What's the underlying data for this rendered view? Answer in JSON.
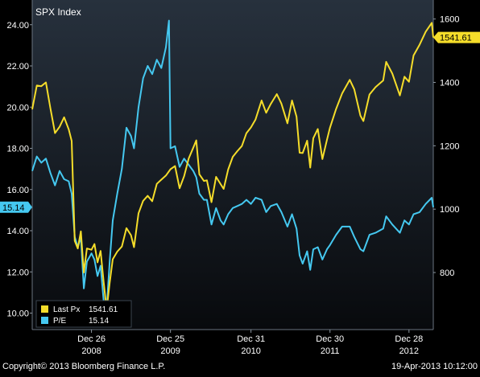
{
  "chart_data": {
    "type": "line",
    "title": "SPX Index",
    "x_tick_labels": [
      {
        "date": "2008-12-26",
        "line1": "Dec 26",
        "line2": "2008"
      },
      {
        "date": "2009-12-25",
        "line1": "Dec 25",
        "line2": "2009"
      },
      {
        "date": "2010-12-31",
        "line1": "Dec 31",
        "line2": "2010"
      },
      {
        "date": "2011-12-30",
        "line1": "Dec 30",
        "line2": "2011"
      },
      {
        "date": "2012-12-28",
        "line1": "Dec 28",
        "line2": "2012"
      }
    ],
    "xlim": [
      "2008-03-28",
      "2013-04-19"
    ],
    "left_axis": {
      "ylim": [
        9.2,
        25.2
      ],
      "ticks": [
        "10.00",
        "12.00",
        "14.00",
        "16.00",
        "18.00",
        "20.00",
        "22.00",
        "24.00"
      ]
    },
    "right_axis": {
      "ylim": [
        620,
        1660
      ],
      "ticks": [
        "800",
        "1000",
        "1200",
        "1400",
        "1600"
      ]
    },
    "legend_position": "bottom-left",
    "grid": false,
    "series": [
      {
        "name": "Last Px",
        "axis": "right",
        "color": "#f5dd2a",
        "last_value": "1541.61",
        "data": [
          [
            "2008-03-28",
            1315
          ],
          [
            "2008-04-18",
            1390
          ],
          [
            "2008-05-09",
            1388
          ],
          [
            "2008-05-30",
            1400
          ],
          [
            "2008-06-20",
            1318
          ],
          [
            "2008-07-11",
            1240
          ],
          [
            "2008-08-01",
            1260
          ],
          [
            "2008-08-22",
            1290
          ],
          [
            "2008-09-12",
            1252
          ],
          [
            "2008-09-26",
            1215
          ],
          [
            "2008-10-10",
            900
          ],
          [
            "2008-10-24",
            876
          ],
          [
            "2008-11-07",
            930
          ],
          [
            "2008-11-21",
            800
          ],
          [
            "2008-12-05",
            876
          ],
          [
            "2008-12-26",
            872
          ],
          [
            "2009-01-09",
            890
          ],
          [
            "2009-01-23",
            832
          ],
          [
            "2009-02-06",
            868
          ],
          [
            "2009-02-20",
            770
          ],
          [
            "2009-03-06",
            683
          ],
          [
            "2009-03-20",
            768
          ],
          [
            "2009-04-03",
            842
          ],
          [
            "2009-04-24",
            866
          ],
          [
            "2009-05-15",
            882
          ],
          [
            "2009-06-05",
            940
          ],
          [
            "2009-06-26",
            918
          ],
          [
            "2009-07-10",
            880
          ],
          [
            "2009-07-31",
            987
          ],
          [
            "2009-08-21",
            1026
          ],
          [
            "2009-09-11",
            1042
          ],
          [
            "2009-10-02",
            1025
          ],
          [
            "2009-10-23",
            1080
          ],
          [
            "2009-11-13",
            1093
          ],
          [
            "2009-12-04",
            1106
          ],
          [
            "2009-12-25",
            1126
          ],
          [
            "2010-01-15",
            1136
          ],
          [
            "2010-02-05",
            1066
          ],
          [
            "2010-02-26",
            1104
          ],
          [
            "2010-03-19",
            1160
          ],
          [
            "2010-04-09",
            1194
          ],
          [
            "2010-04-23",
            1217
          ],
          [
            "2010-05-07",
            1110
          ],
          [
            "2010-05-28",
            1089
          ],
          [
            "2010-06-11",
            1091
          ],
          [
            "2010-07-02",
            1022
          ],
          [
            "2010-07-23",
            1102
          ],
          [
            "2010-08-13",
            1079
          ],
          [
            "2010-08-27",
            1064
          ],
          [
            "2010-09-17",
            1125
          ],
          [
            "2010-10-08",
            1165
          ],
          [
            "2010-10-29",
            1183
          ],
          [
            "2010-11-19",
            1199
          ],
          [
            "2010-12-10",
            1240
          ],
          [
            "2010-12-31",
            1258
          ],
          [
            "2011-01-21",
            1283
          ],
          [
            "2011-02-18",
            1343
          ],
          [
            "2011-03-11",
            1304
          ],
          [
            "2011-04-01",
            1332
          ],
          [
            "2011-04-29",
            1363
          ],
          [
            "2011-05-20",
            1333
          ],
          [
            "2011-06-17",
            1271
          ],
          [
            "2011-07-08",
            1343
          ],
          [
            "2011-07-29",
            1292
          ],
          [
            "2011-08-12",
            1178
          ],
          [
            "2011-08-26",
            1177
          ],
          [
            "2011-09-16",
            1216
          ],
          [
            "2011-09-30",
            1131
          ],
          [
            "2011-10-14",
            1224
          ],
          [
            "2011-11-04",
            1253
          ],
          [
            "2011-11-25",
            1158
          ],
          [
            "2011-12-16",
            1219
          ],
          [
            "2011-12-30",
            1257
          ],
          [
            "2012-01-27",
            1316
          ],
          [
            "2012-02-24",
            1365
          ],
          [
            "2012-03-30",
            1408
          ],
          [
            "2012-04-20",
            1378
          ],
          [
            "2012-05-18",
            1295
          ],
          [
            "2012-06-01",
            1278
          ],
          [
            "2012-06-29",
            1362
          ],
          [
            "2012-07-27",
            1385
          ],
          [
            "2012-08-31",
            1406
          ],
          [
            "2012-09-14",
            1465
          ],
          [
            "2012-10-12",
            1428
          ],
          [
            "2012-11-16",
            1359
          ],
          [
            "2012-12-07",
            1418
          ],
          [
            "2012-12-28",
            1402
          ],
          [
            "2013-01-18",
            1485
          ],
          [
            "2013-02-15",
            1519
          ],
          [
            "2013-03-15",
            1560
          ],
          [
            "2013-04-12",
            1588
          ],
          [
            "2013-04-19",
            1541.61
          ]
        ]
      },
      {
        "name": "P/E",
        "axis": "left",
        "color": "#45c8f0",
        "last_value": "15.14",
        "data": [
          [
            "2008-03-28",
            16.9
          ],
          [
            "2008-04-18",
            17.6
          ],
          [
            "2008-05-09",
            17.3
          ],
          [
            "2008-05-30",
            17.5
          ],
          [
            "2008-06-20",
            16.8
          ],
          [
            "2008-07-11",
            16.2
          ],
          [
            "2008-08-01",
            16.9
          ],
          [
            "2008-08-22",
            16.5
          ],
          [
            "2008-09-12",
            16.4
          ],
          [
            "2008-09-26",
            15.8
          ],
          [
            "2008-10-10",
            13.7
          ],
          [
            "2008-10-24",
            13.2
          ],
          [
            "2008-11-07",
            13.7
          ],
          [
            "2008-11-21",
            11.2
          ],
          [
            "2008-12-05",
            12.5
          ],
          [
            "2008-12-26",
            12.9
          ],
          [
            "2009-01-09",
            12.6
          ],
          [
            "2009-01-23",
            11.8
          ],
          [
            "2009-02-06",
            12.3
          ],
          [
            "2009-02-20",
            10.6
          ],
          [
            "2009-03-06",
            10.2
          ],
          [
            "2009-03-20",
            12.5
          ],
          [
            "2009-04-03",
            14.5
          ],
          [
            "2009-04-24",
            15.8
          ],
          [
            "2009-05-15",
            17.0
          ],
          [
            "2009-06-05",
            19.0
          ],
          [
            "2009-06-26",
            18.6
          ],
          [
            "2009-07-10",
            18.0
          ],
          [
            "2009-07-31",
            20.0
          ],
          [
            "2009-08-21",
            21.4
          ],
          [
            "2009-09-11",
            22.0
          ],
          [
            "2009-10-02",
            21.6
          ],
          [
            "2009-10-23",
            22.3
          ],
          [
            "2009-11-13",
            21.9
          ],
          [
            "2009-12-04",
            22.9
          ],
          [
            "2009-12-18",
            24.2
          ],
          [
            "2009-12-25",
            18.0
          ],
          [
            "2010-01-15",
            18.1
          ],
          [
            "2010-02-05",
            17.1
          ],
          [
            "2010-02-26",
            17.5
          ],
          [
            "2010-03-19",
            17.2
          ],
          [
            "2010-04-09",
            16.9
          ],
          [
            "2010-04-23",
            16.6
          ],
          [
            "2010-05-07",
            15.8
          ],
          [
            "2010-05-28",
            15.5
          ],
          [
            "2010-06-11",
            15.5
          ],
          [
            "2010-07-02",
            14.3
          ],
          [
            "2010-07-23",
            15.1
          ],
          [
            "2010-08-13",
            14.5
          ],
          [
            "2010-08-27",
            14.3
          ],
          [
            "2010-09-17",
            14.8
          ],
          [
            "2010-10-08",
            15.1
          ],
          [
            "2010-10-29",
            15.2
          ],
          [
            "2010-11-19",
            15.3
          ],
          [
            "2010-12-10",
            15.5
          ],
          [
            "2010-12-31",
            15.3
          ],
          [
            "2011-01-21",
            15.6
          ],
          [
            "2011-02-18",
            15.5
          ],
          [
            "2011-03-11",
            14.9
          ],
          [
            "2011-04-01",
            15.2
          ],
          [
            "2011-04-29",
            15.3
          ],
          [
            "2011-05-20",
            14.9
          ],
          [
            "2011-06-17",
            14.2
          ],
          [
            "2011-07-08",
            14.8
          ],
          [
            "2011-07-29",
            14.1
          ],
          [
            "2011-08-12",
            12.8
          ],
          [
            "2011-08-26",
            12.4
          ],
          [
            "2011-09-16",
            13.0
          ],
          [
            "2011-09-30",
            12.1
          ],
          [
            "2011-10-14",
            13.1
          ],
          [
            "2011-11-04",
            13.2
          ],
          [
            "2011-11-25",
            12.6
          ],
          [
            "2011-12-16",
            13.1
          ],
          [
            "2011-12-30",
            13.3
          ],
          [
            "2012-01-27",
            13.8
          ],
          [
            "2012-02-24",
            14.2
          ],
          [
            "2012-03-30",
            14.2
          ],
          [
            "2012-04-20",
            13.7
          ],
          [
            "2012-05-18",
            13.1
          ],
          [
            "2012-06-01",
            13.0
          ],
          [
            "2012-06-29",
            13.8
          ],
          [
            "2012-07-27",
            13.9
          ],
          [
            "2012-08-31",
            14.1
          ],
          [
            "2012-09-14",
            14.7
          ],
          [
            "2012-10-12",
            14.3
          ],
          [
            "2012-11-16",
            13.9
          ],
          [
            "2012-12-07",
            14.5
          ],
          [
            "2012-12-28",
            14.3
          ],
          [
            "2013-01-18",
            14.8
          ],
          [
            "2013-02-15",
            14.9
          ],
          [
            "2013-03-15",
            15.3
          ],
          [
            "2013-04-12",
            15.6
          ],
          [
            "2013-04-19",
            15.14
          ]
        ]
      }
    ]
  },
  "footer": {
    "copyright": "Copyright© 2013 Bloomberg Finance L.P.",
    "timestamp": "19-Apr-2013 10:12:00"
  },
  "colors": {
    "background": "#000000",
    "plot_top": "#27313d",
    "plot_bottom": "#080a0d",
    "axis_text": "#ffffff"
  }
}
